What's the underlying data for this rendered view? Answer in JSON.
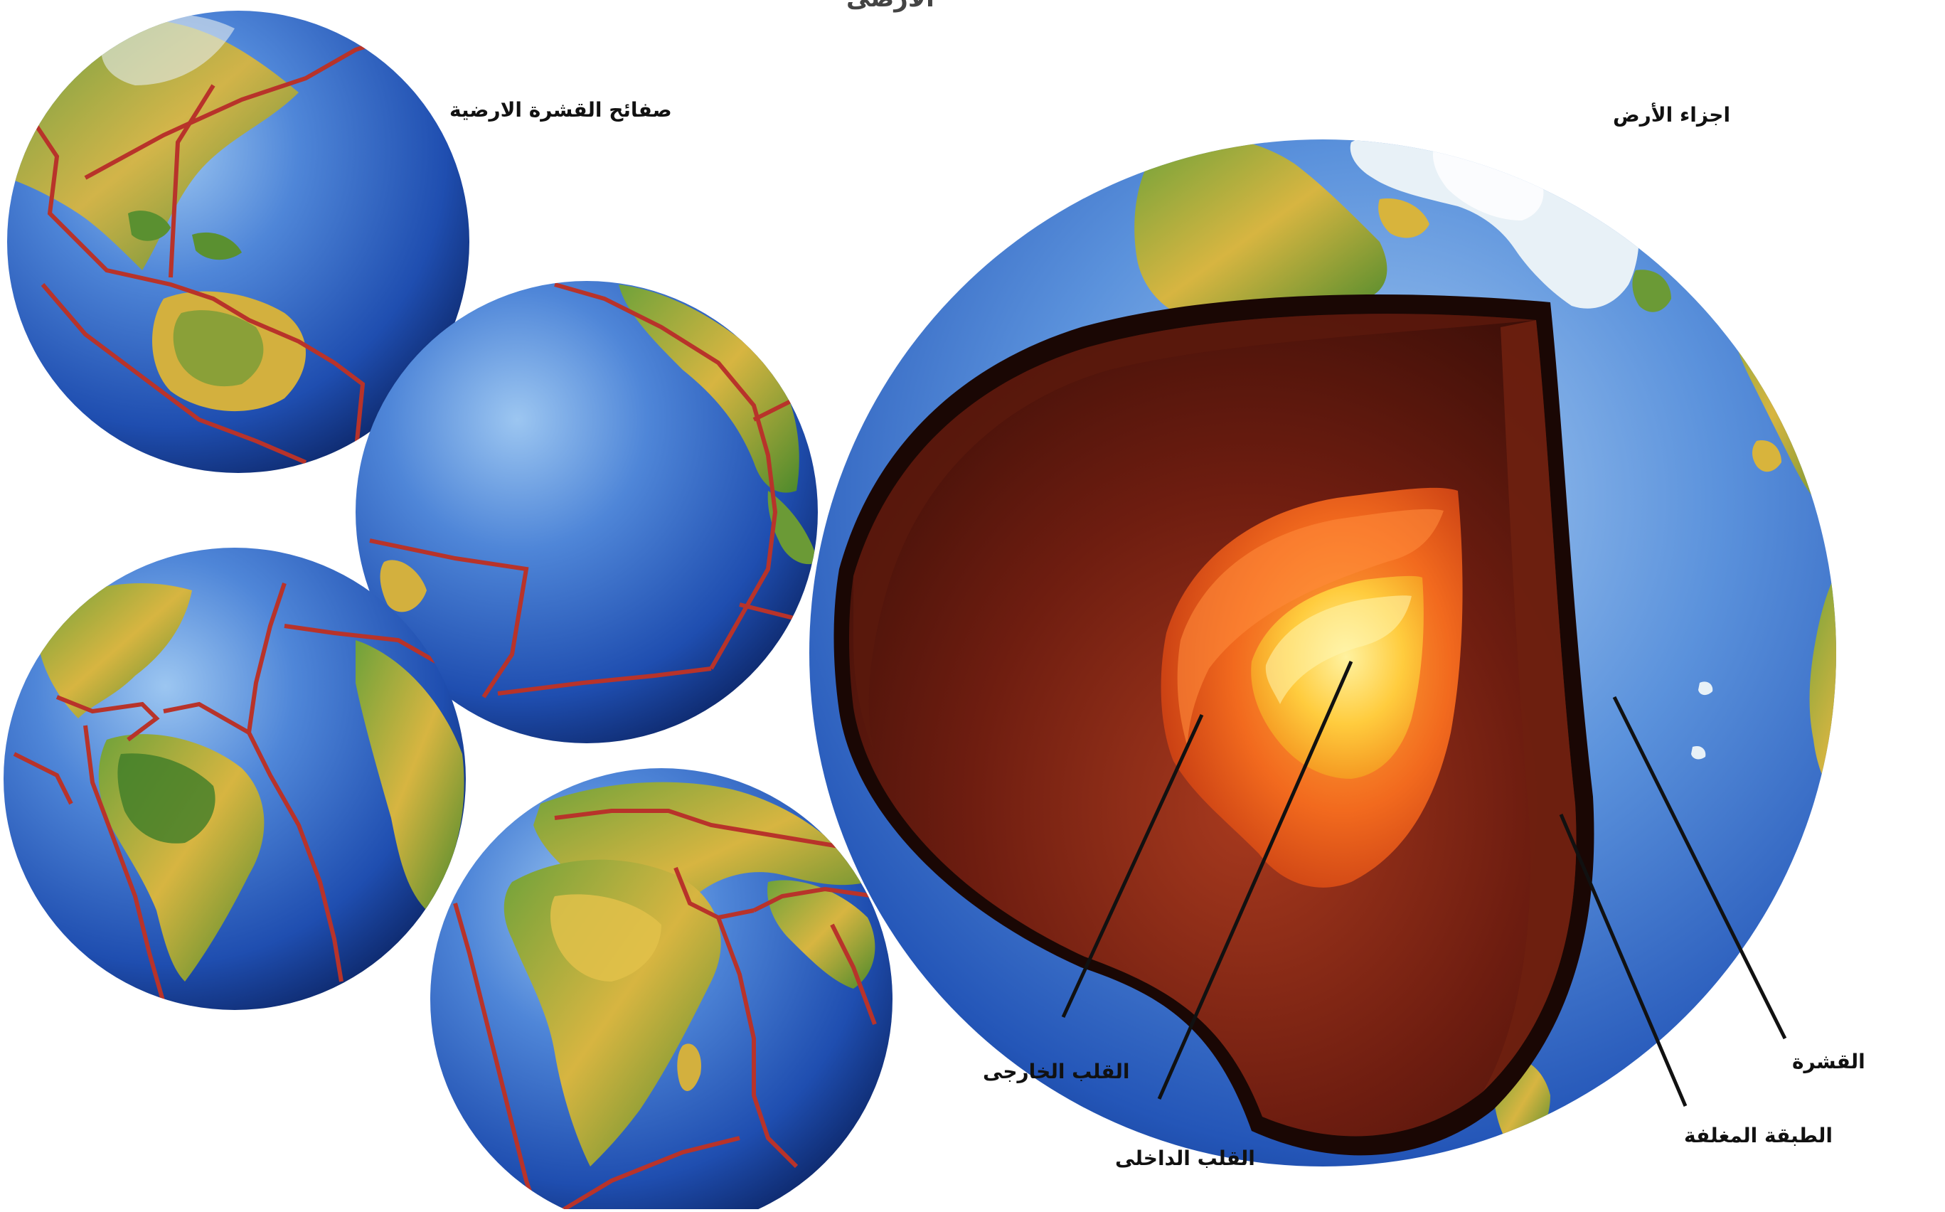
{
  "header_fragment": "الارضى",
  "labels": {
    "plates_title": "صفائح القشرة الارضية",
    "earth_parts_title": "اجزاء الأرض",
    "crust": "القشرة",
    "mantle": "الطبقة المغلفة",
    "outer_core": "القلب الخارجى",
    "inner_core": "القلب الداخلى"
  },
  "colors": {
    "ocean_light": "#7db3ea",
    "ocean_mid": "#2f67c6",
    "ocean_dark": "#0d2a78",
    "land_green": "#4f8f2e",
    "land_yellow": "#d8b43c",
    "ice": "#e8f1f7",
    "plate_boundary": "#b8332a",
    "mantle_dark": "#4a120c",
    "mantle": "#7d2414",
    "outer_core": "#f0581c",
    "inner_core": "#ffd34a",
    "leader_line": "#111111"
  },
  "globes": [
    {
      "name": "globe-asia-australia",
      "icon": "globe-icon"
    },
    {
      "name": "globe-pacific",
      "icon": "globe-icon"
    },
    {
      "name": "globe-americas",
      "icon": "globe-icon"
    },
    {
      "name": "globe-africa",
      "icon": "globe-icon"
    }
  ]
}
